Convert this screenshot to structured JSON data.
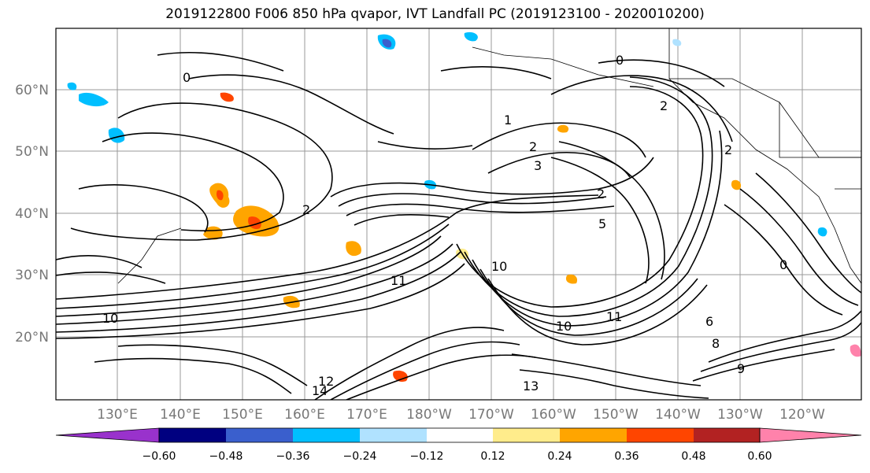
{
  "title": "2019122800 F006 850 hPa qvapor, IVT Landfall PC (2019123100 - 2020010200)",
  "lat_ticks": [
    "20°N",
    "30°N",
    "40°N",
    "50°N",
    "60°N"
  ],
  "lon_ticks": [
    "130°E",
    "140°E",
    "150°E",
    "160°E",
    "170°E",
    "180°W",
    "170°W",
    "160°W",
    "150°W",
    "140°W",
    "130°W",
    "120°W"
  ],
  "colorbar": {
    "colors": [
      "#9932cc",
      "#000080",
      "#3a5fcd",
      "#00bfff",
      "#b0e2ff",
      "#ffffff",
      "#ffec8b",
      "#ffa500",
      "#ff4500",
      "#b22222",
      "#ff82ab"
    ],
    "tick_labels": [
      "−0.60",
      "−0.48",
      "−0.36",
      "−0.24",
      "−0.12",
      "0.12",
      "0.24",
      "0.36",
      "0.48",
      "0.60"
    ]
  },
  "contour_labels": [
    "0",
    "0",
    "0",
    "1",
    "2",
    "2",
    "2",
    "2",
    "2",
    "3",
    "5",
    "6",
    "8",
    "9",
    "10",
    "10",
    "10",
    "11",
    "11",
    "12",
    "13",
    "14"
  ]
}
